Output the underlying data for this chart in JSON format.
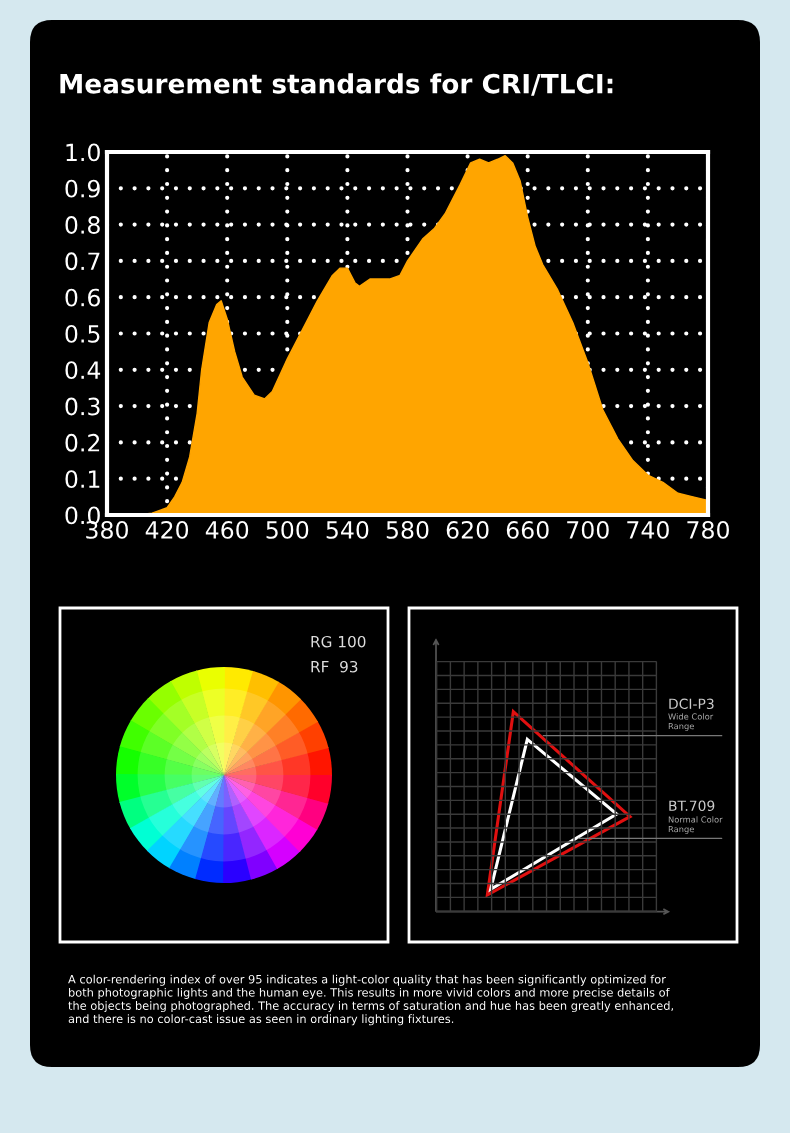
{
  "chart_data": {
    "type": "area",
    "title": "Measurement standards for CRI/TLCI:",
    "x": [
      380,
      400,
      410,
      420,
      425,
      430,
      435,
      440,
      443,
      448,
      453,
      456,
      460,
      465,
      470,
      478,
      485,
      490,
      500,
      510,
      520,
      530,
      535,
      540,
      545,
      548,
      555,
      560,
      568,
      575,
      580,
      590,
      598,
      605,
      615,
      622,
      628,
      634,
      640,
      645,
      650,
      655,
      660,
      665,
      670,
      680,
      690,
      700,
      710,
      720,
      730,
      740,
      750,
      760,
      770,
      780
    ],
    "series": [
      {
        "color": "#ffa500",
        "values": [
          0,
          0,
          0.005,
          0.02,
          0.05,
          0.09,
          0.16,
          0.28,
          0.4,
          0.53,
          0.58,
          0.59,
          0.54,
          0.45,
          0.38,
          0.33,
          0.32,
          0.34,
          0.43,
          0.51,
          0.59,
          0.66,
          0.68,
          0.68,
          0.64,
          0.63,
          0.65,
          0.65,
          0.65,
          0.66,
          0.7,
          0.76,
          0.79,
          0.83,
          0.91,
          0.97,
          0.98,
          0.97,
          0.98,
          0.99,
          0.97,
          0.92,
          0.82,
          0.74,
          0.69,
          0.62,
          0.53,
          0.42,
          0.29,
          0.21,
          0.15,
          0.11,
          0.09,
          0.06,
          0.05,
          0.04
        ]
      }
    ],
    "xlim": [
      380,
      780
    ],
    "ylim": [
      0,
      1.0
    ],
    "xticks": [
      380,
      420,
      460,
      500,
      540,
      580,
      620,
      660,
      700,
      740,
      780
    ],
    "yticks": [
      {
        "value": 0,
        "label": "0.0"
      },
      0.1,
      0.2,
      0.3,
      0.4,
      0.5,
      0.6,
      0.7,
      0.8,
      0.9,
      {
        "value": 1.0,
        "label": "1.0"
      }
    ],
    "grid": true,
    "annotations": [
      "RG 100",
      "RF  93",
      "DCI-P3",
      "Wide Color\nRange",
      "BT.709",
      "Normal Color\nRange",
      "A color-rendering index of over 95 indicates a light-color quality that has been significantly optimized for\nboth photographic lights and the human eye. This results in more vivid colors and more precise details of\nthe objects being photographed. The accuracy in terms of saturation and hue has been greatly enhanced,\nand there is no color-cast issue as seen in ordinary lighting fixtures."
    ]
  }
}
